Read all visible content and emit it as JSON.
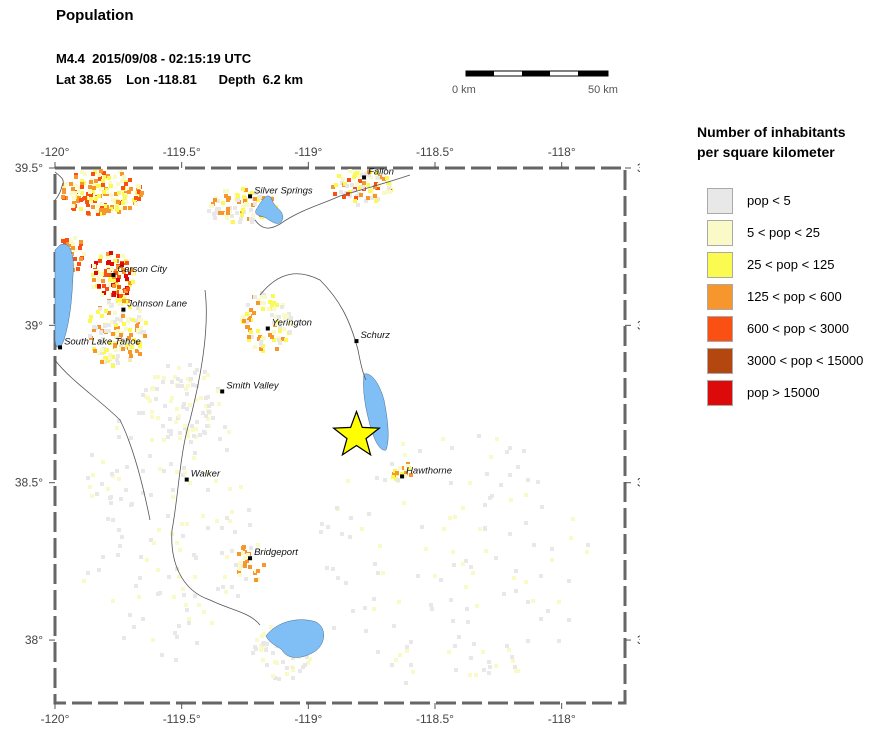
{
  "title": "Population",
  "event": {
    "line1": "M4.4  2015/09/08 - 02:15:19 UTC",
    "line2": "Lat 38.65    Lon -118.81      Depth  6.2 km"
  },
  "scale": {
    "left_label": "0 km",
    "right_label": "50 km"
  },
  "map": {
    "lon_range": [
      -120.0,
      -117.75
    ],
    "lat_range": [
      37.8,
      39.5
    ],
    "lon_ticks": [
      {
        "value": -120.0,
        "label": "-120°"
      },
      {
        "value": -119.5,
        "label": "-119.5°"
      },
      {
        "value": -119.0,
        "label": "-119°"
      },
      {
        "value": -118.5,
        "label": "-118.5°"
      },
      {
        "value": -118.0,
        "label": "-118°"
      }
    ],
    "lat_ticks": [
      {
        "value": 39.5,
        "label": "39.5°"
      },
      {
        "value": 39.0,
        "label": "39°"
      },
      {
        "value": 38.5,
        "label": "38.5°"
      },
      {
        "value": 38.0,
        "label": "38°"
      }
    ],
    "epicenter": {
      "lon": -118.81,
      "lat": 38.65,
      "icon": "star-icon",
      "color": "#ffff00"
    },
    "water_color": "#7fbff5",
    "places": [
      {
        "name": "Fallon",
        "lon": -118.78,
        "lat": 39.47
      },
      {
        "name": "Silver Springs",
        "lon": -119.23,
        "lat": 39.41
      },
      {
        "name": "Carson City",
        "lon": -119.77,
        "lat": 39.16
      },
      {
        "name": "Johnson Lane",
        "lon": -119.73,
        "lat": 39.05
      },
      {
        "name": "Yerington",
        "lon": -119.16,
        "lat": 38.99
      },
      {
        "name": "Schurz",
        "lon": -118.81,
        "lat": 38.95
      },
      {
        "name": "South Lake Tahoe",
        "lon": -119.98,
        "lat": 38.93
      },
      {
        "name": "Smith Valley",
        "lon": -119.34,
        "lat": 38.79
      },
      {
        "name": "Hawthorne",
        "lon": -118.63,
        "lat": 38.52
      },
      {
        "name": "Walker",
        "lon": -119.48,
        "lat": 38.51
      },
      {
        "name": "Bridgeport",
        "lon": -119.23,
        "lat": 38.26
      }
    ]
  },
  "legend": {
    "title_line1": "Number of inhabitants",
    "title_line2": "per square kilometer",
    "items": [
      {
        "label": "pop < 5",
        "color": "#e8e8e8"
      },
      {
        "label": "5 < pop < 25",
        "color": "#fafac8"
      },
      {
        "label": "25 < pop < 125",
        "color": "#fafa50"
      },
      {
        "label": "125 < pop < 600",
        "color": "#f8962e"
      },
      {
        "label": "600 < pop < 3000",
        "color": "#fa5014"
      },
      {
        "label": "3000 < pop < 15000",
        "color": "#b4460f"
      },
      {
        "label": "pop > 15000",
        "color": "#dc0a0a"
      }
    ]
  }
}
